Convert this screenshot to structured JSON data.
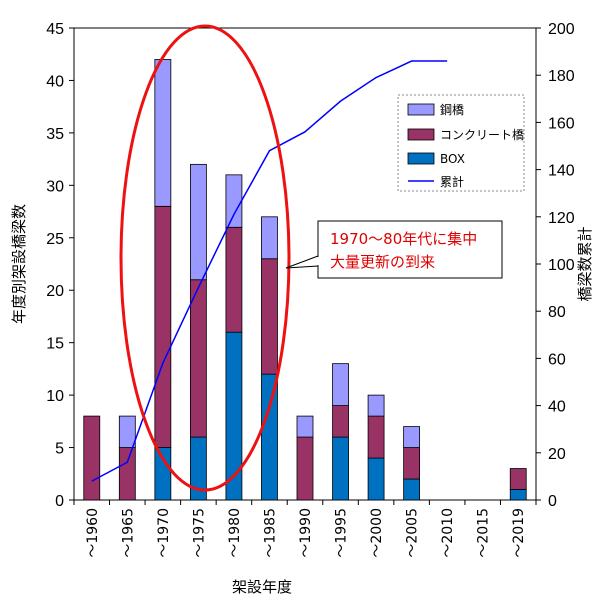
{
  "chart_data": {
    "type": "bar",
    "stacked": true,
    "categories": [
      "～1960",
      "～1965",
      "～1970",
      "～1975",
      "～1980",
      "～1985",
      "～1990",
      "～1995",
      "～2000",
      "～2005",
      "～2010",
      "～2015",
      "～2019"
    ],
    "series": [
      {
        "name": "鋼橋",
        "color": "#9999ff",
        "values": [
          0,
          3,
          14,
          11,
          5,
          4,
          2,
          4,
          2,
          2,
          0,
          0,
          0
        ]
      },
      {
        "name": "コンクリート橋",
        "color": "#993366",
        "values": [
          8,
          5,
          23,
          15,
          10,
          11,
          6,
          3,
          4,
          3,
          0,
          0,
          2
        ]
      },
      {
        "name": "BOX",
        "color": "#0070c0",
        "values": [
          0,
          0,
          5,
          6,
          16,
          12,
          0,
          6,
          4,
          2,
          0,
          0,
          1
        ]
      }
    ],
    "line_series": {
      "name": "累計",
      "color": "#0000ff",
      "axis": "right",
      "values": [
        8,
        16,
        58,
        90,
        121,
        148,
        156,
        169,
        179,
        186,
        186,
        null,
        null
      ]
    },
    "xlabel": "架設年度",
    "ylabel": "年度別架設橋梁数",
    "y2label": "橋梁数累計",
    "ylim": [
      0,
      45
    ],
    "y2lim": [
      0,
      200
    ],
    "yticks": [
      "0",
      "5",
      "10",
      "15",
      "20",
      "25",
      "30",
      "35",
      "40",
      "45"
    ],
    "y2ticks": [
      "0",
      "20",
      "40",
      "60",
      "80",
      "100",
      "120",
      "140",
      "160",
      "180",
      "200"
    ],
    "legend_position": "right",
    "annotation": {
      "lines": [
        "1970～80年代に集中",
        "大量更新の到来"
      ],
      "color": "#e00000"
    }
  }
}
